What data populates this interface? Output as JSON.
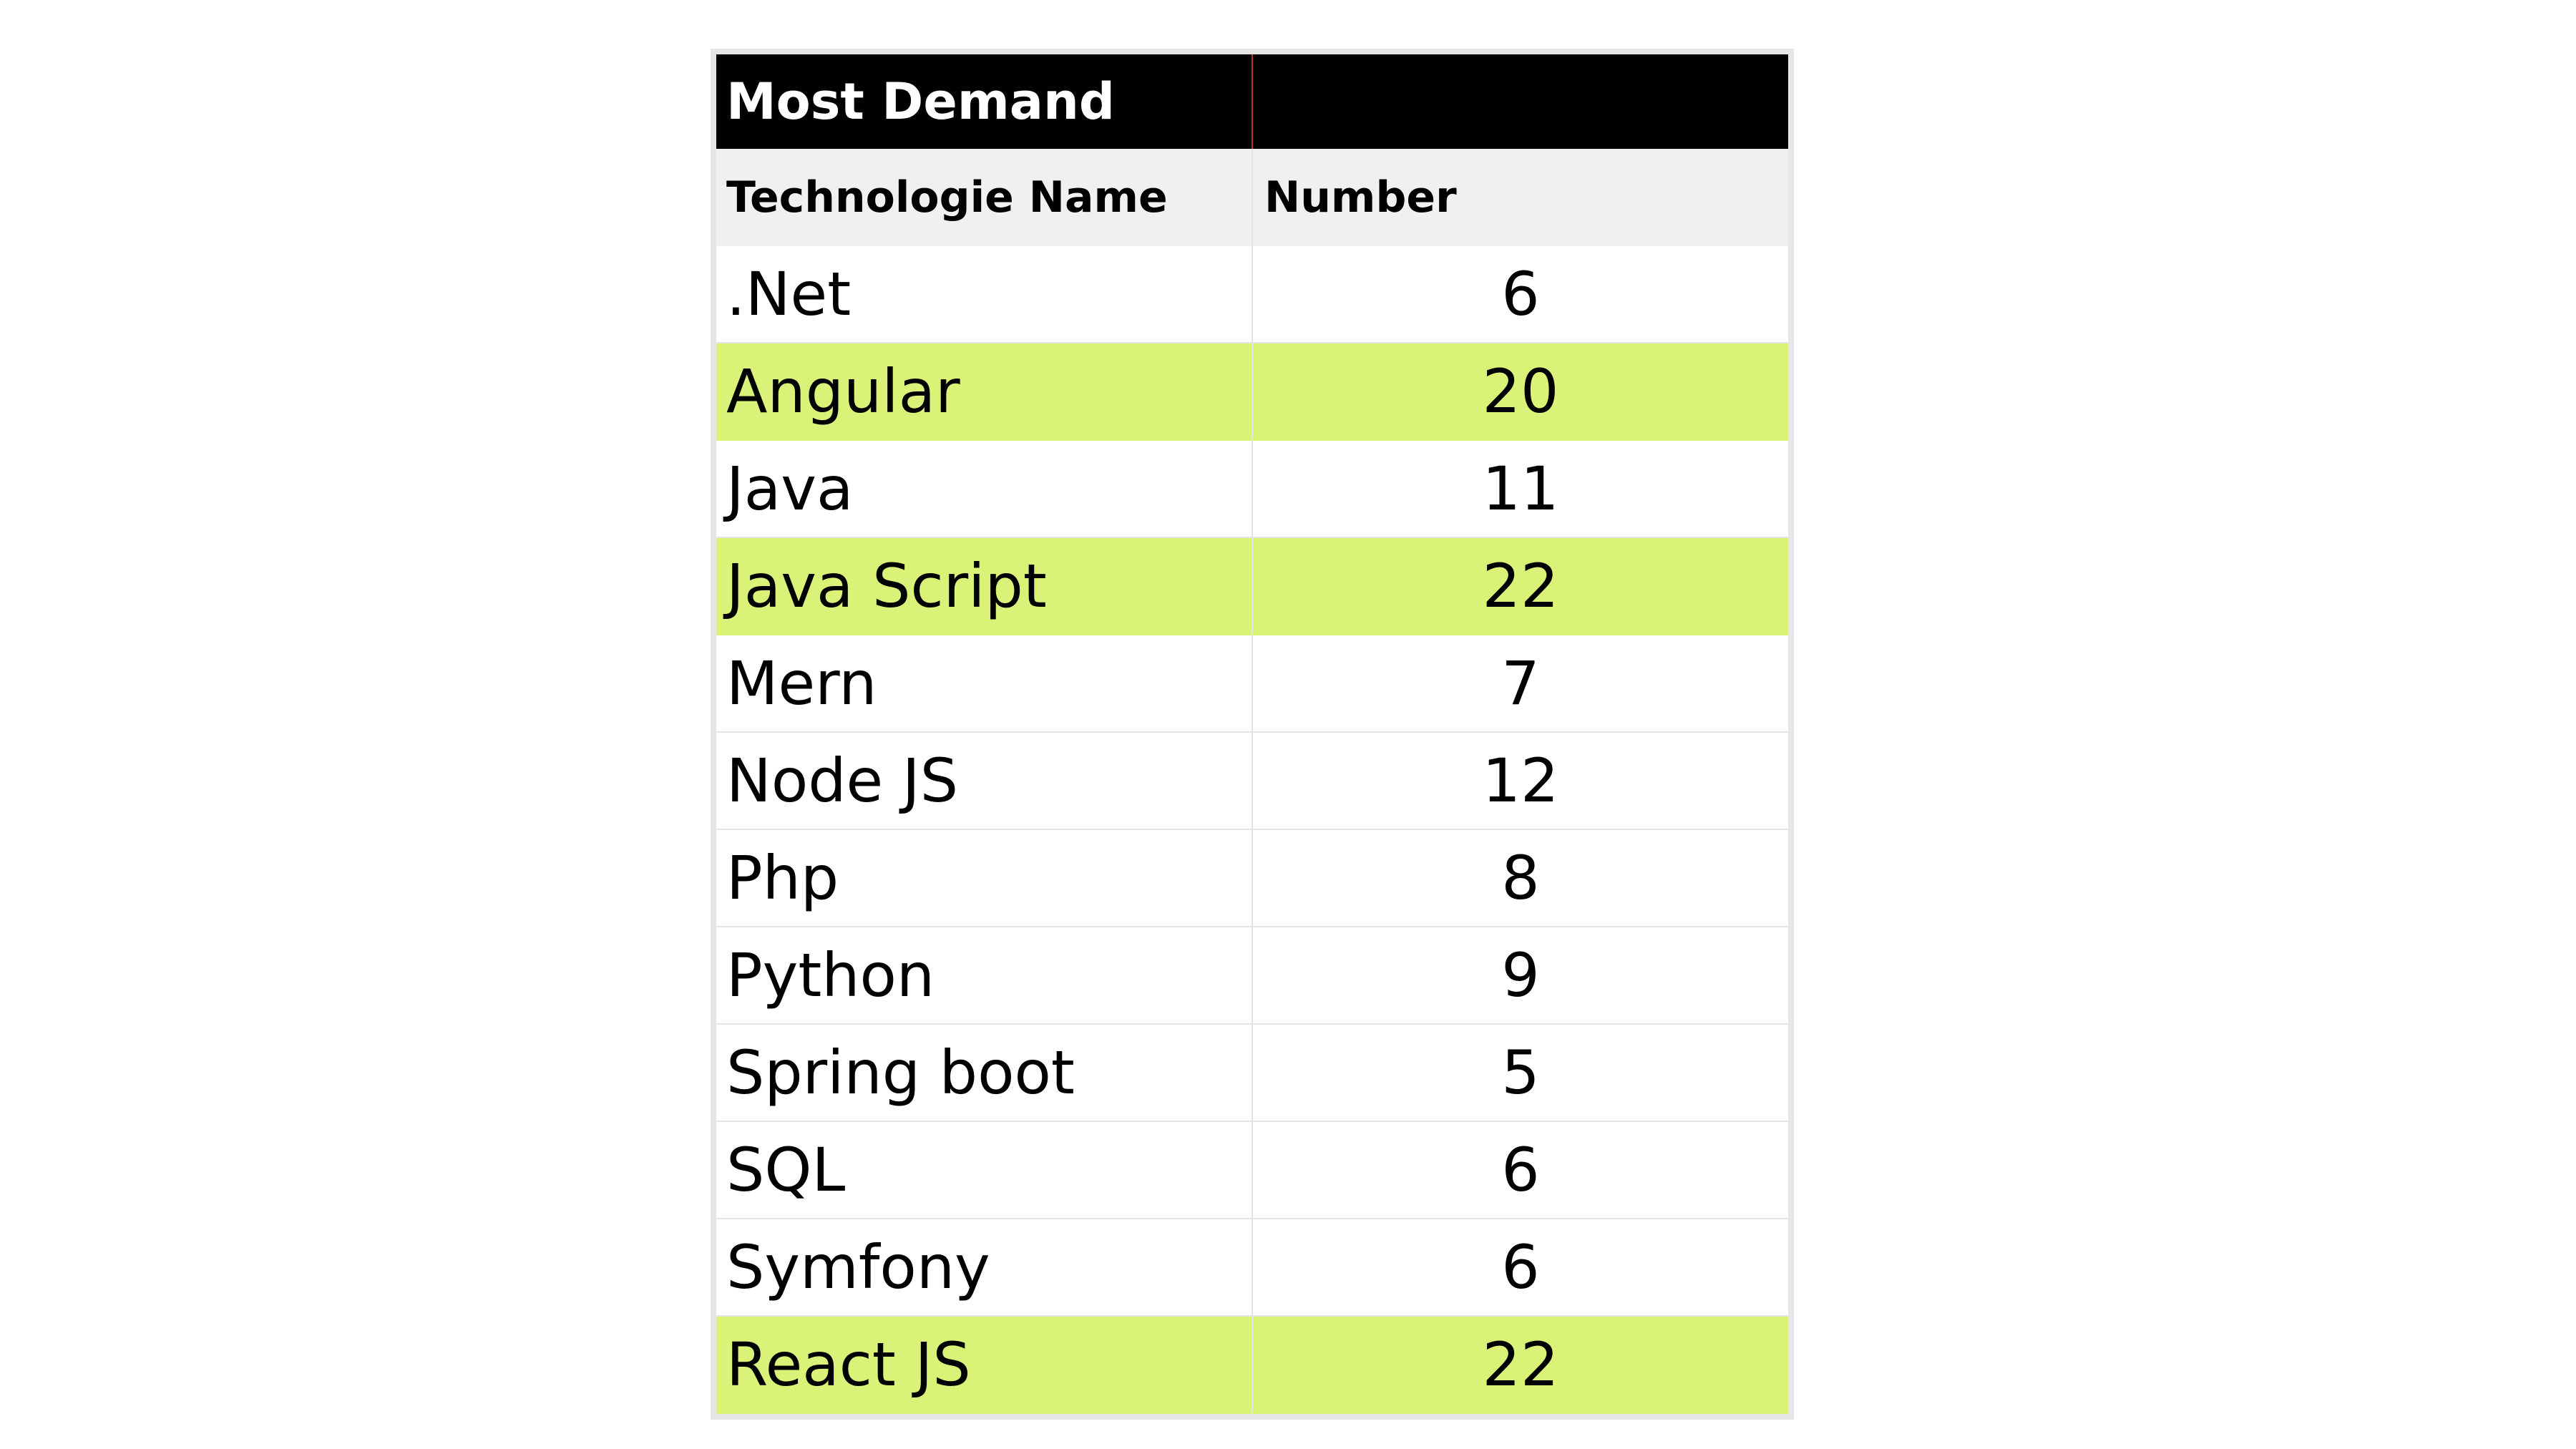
{
  "chart_data": {
    "type": "table",
    "title": "Most Demand",
    "columns": [
      "Technologie Name",
      "Number"
    ],
    "rows": [
      {
        "name": ".Net",
        "value": 6,
        "highlight": false
      },
      {
        "name": "Angular",
        "value": 20,
        "highlight": true
      },
      {
        "name": "Java",
        "value": 11,
        "highlight": false
      },
      {
        "name": "Java Script",
        "value": 22,
        "highlight": true
      },
      {
        "name": "Mern",
        "value": 7,
        "highlight": false
      },
      {
        "name": "Node JS",
        "value": 12,
        "highlight": false
      },
      {
        "name": "Php",
        "value": 8,
        "highlight": false
      },
      {
        "name": "Python",
        "value": 9,
        "highlight": false
      },
      {
        "name": "Spring boot",
        "value": 5,
        "highlight": false
      },
      {
        "name": "SQL",
        "value": 6,
        "highlight": false
      },
      {
        "name": "Symfony",
        "value": 6,
        "highlight": false
      },
      {
        "name": "React JS",
        "value": 22,
        "highlight": true
      }
    ],
    "colors": {
      "title_background": "#000000",
      "title_text": "#ffffff",
      "header_background": "#f0f0f0",
      "highlight": "#d9f277"
    }
  }
}
